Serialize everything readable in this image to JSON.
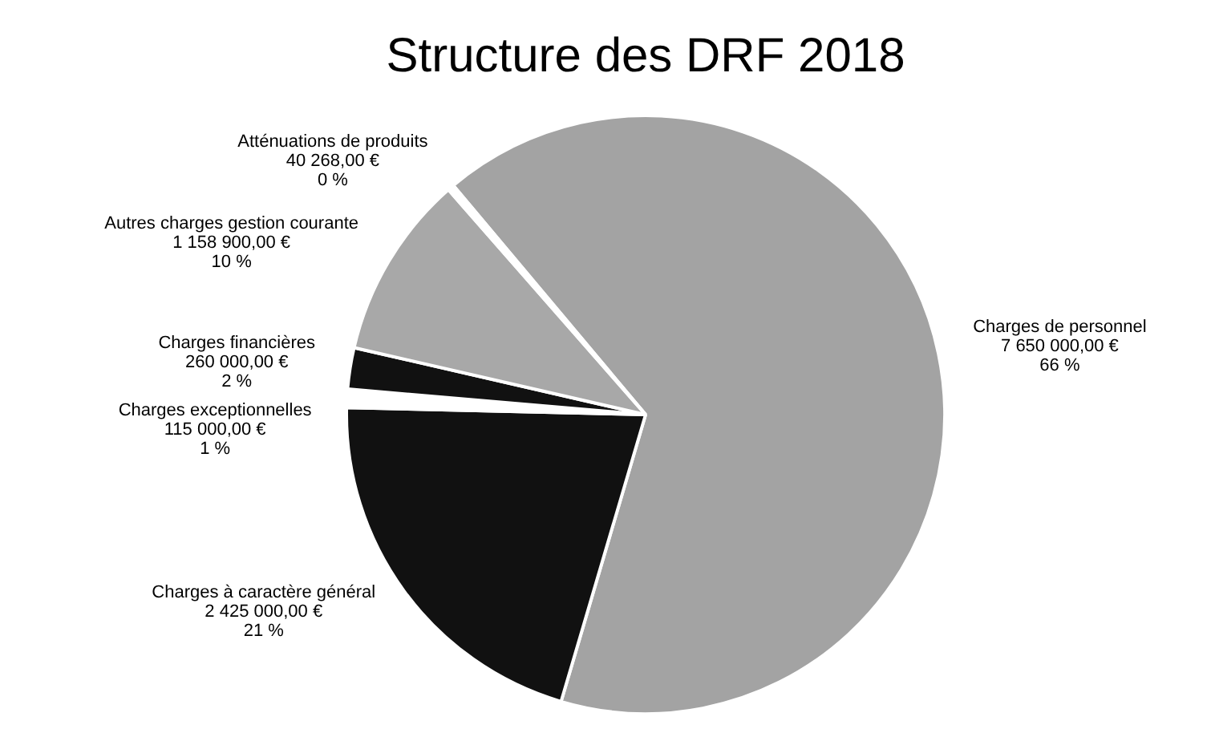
{
  "chart_data": {
    "type": "pie",
    "title": "Structure des DRF 2018",
    "categories": [
      "Charges de personnel",
      "Charges à caractère général",
      "Charges exceptionnelles",
      "Charges financières",
      "Autres charges gestion courante",
      "Atténuations de produits"
    ],
    "values": [
      7650000,
      2425000,
      115000,
      260000,
      1158900,
      40268
    ],
    "colors": [
      "#a3a3a3",
      "#111111",
      "#ffffff",
      "#111111",
      "#a8a8a8",
      "#ffffff"
    ],
    "value_labels": [
      "7 650 000,00 €\n66 %",
      "2 425 000,00 €\n21 %",
      "115 000,00 €\n1 %",
      "260 000,00 €\n2 %",
      "1 158 900,00 €\n10 %",
      "40 268,00 €\n0 %"
    ],
    "legend": false
  }
}
